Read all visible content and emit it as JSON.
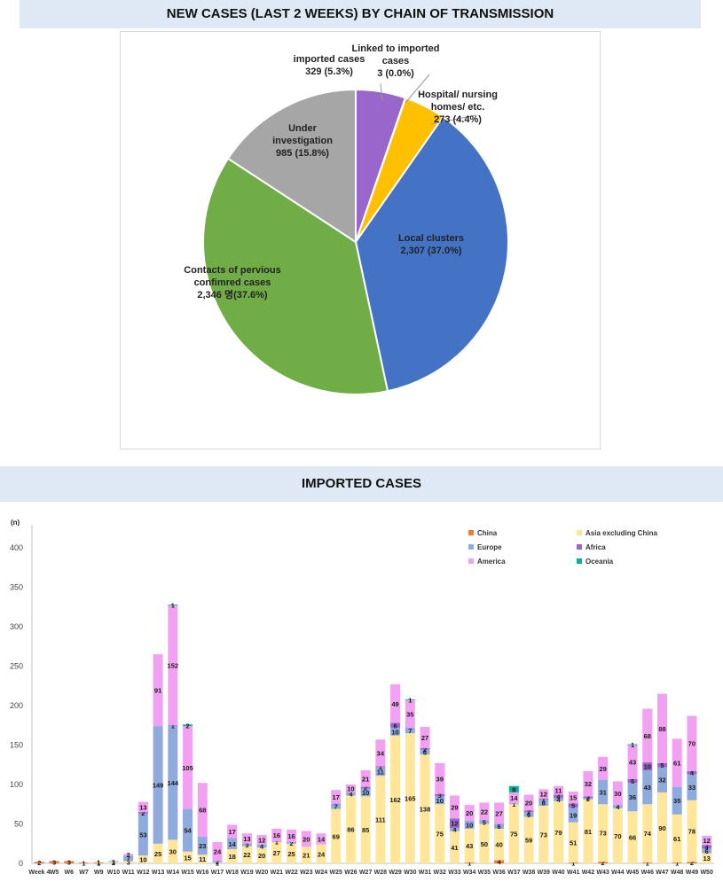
{
  "header_pie": "NEW CASES (LAST 2 WEEKS) BY CHAIN OF TRANSMISSION",
  "header_bar": "IMPORTED CASES",
  "chart_data": [
    {
      "type": "pie",
      "title": "NEW CASES (LAST 2 WEEKS) BY CHAIN OF TRANSMISSION",
      "slices": [
        {
          "line1": "imported cases",
          "line2": "",
          "line3": "329 (5.3%)",
          "value": 329,
          "percent": 5.3,
          "color": "#9966cc"
        },
        {
          "line1": "Linked to imported",
          "line2": "cases",
          "line3": "3 (0.0%)",
          "value": 3,
          "percent": 0.0,
          "color": "#f2d24a"
        },
        {
          "line1": "Hospital/ nursing",
          "line2": "homes/ etc.",
          "line3": "273 (4.4%)",
          "value": 273,
          "percent": 4.4,
          "color": "#ffc000"
        },
        {
          "line1": "Local clusters",
          "line2": "",
          "line3": "2,307 (37.0%)",
          "value": 2307,
          "percent": 37.0,
          "color": "#4472c4"
        },
        {
          "line1": "Contacts of pervious",
          "line2": "confimred cases",
          "line3": "2,346 명(37.6%)",
          "value": 2346,
          "percent": 37.6,
          "color": "#70ad47"
        },
        {
          "line1": "Under",
          "line2": "investigation",
          "line3": "985 (15.8%)",
          "value": 985,
          "percent": 15.8,
          "color": "#a6a6a6"
        }
      ]
    },
    {
      "type": "bar",
      "stacked": true,
      "title": "IMPORTED CASES",
      "ylabel": "(n)",
      "ylim": [
        0,
        400
      ],
      "yticks": [
        "0",
        "50",
        "100",
        "150",
        "200",
        "250",
        "300",
        "350",
        "400"
      ],
      "legend_position": "top-right",
      "categories": [
        "Week 4",
        "W5",
        "W6",
        "W7",
        "W9",
        "W10",
        "W11",
        "W12",
        "W13",
        "W14",
        "W15",
        "W16",
        "W17",
        "W18",
        "W19",
        "W20",
        "W21",
        "W22",
        "W23",
        "W24",
        "W25",
        "W26",
        "W27",
        "W28",
        "W29",
        "W30",
        "W31",
        "W32",
        "W33",
        "W34",
        "W35",
        "W36",
        "W37",
        "W38",
        "W39",
        "W40",
        "W41",
        "W42",
        "W43",
        "W44",
        "W45",
        "W46",
        "W47",
        "W48",
        "W49",
        "W50"
      ],
      "series": [
        {
          "name": "China",
          "color": "#ed7d31",
          "values": [
            2,
            3,
            3,
            1,
            1,
            0,
            0,
            0,
            0,
            0,
            0,
            0,
            0,
            0,
            0,
            0,
            0,
            0,
            0,
            0,
            0,
            0,
            0,
            0,
            0,
            0,
            0,
            0,
            0,
            1,
            0,
            4,
            0,
            0,
            0,
            0,
            1,
            0,
            2,
            0,
            0,
            1,
            0,
            1,
            2,
            0
          ]
        },
        {
          "name": "Asia excluding China",
          "color": "#ffe699",
          "values": [
            0,
            0,
            0,
            0,
            1,
            2,
            3,
            10,
            25,
            30,
            15,
            11,
            1,
            18,
            22,
            20,
            27,
            25,
            21,
            24,
            69,
            86,
            85,
            111,
            162,
            165,
            138,
            75,
            41,
            43,
            50,
            40,
            75,
            59,
            73,
            79,
            51,
            81,
            73,
            70,
            66,
            74,
            90,
            61,
            78,
            13
          ]
        },
        {
          "name": "Europe",
          "color": "#8faadc",
          "values": [
            0,
            0,
            0,
            0,
            0,
            1,
            7,
            53,
            149,
            144,
            54,
            23,
            2,
            14,
            3,
            4,
            1,
            2,
            0,
            0,
            7,
            4,
            10,
            11,
            10,
            7,
            6,
            10,
            4,
            10,
            5,
            6,
            1,
            6,
            8,
            4,
            19,
            2,
            31,
            4,
            36,
            43,
            32,
            35,
            33,
            6
          ]
        },
        {
          "name": "Africa",
          "color": "#9966cc",
          "values": [
            0,
            0,
            0,
            0,
            0,
            0,
            0,
            2,
            0,
            1,
            0,
            0,
            0,
            0,
            0,
            0,
            0,
            0,
            0,
            0,
            0,
            0,
            2,
            1,
            6,
            0,
            2,
            3,
            12,
            0,
            0,
            0,
            0,
            2,
            1,
            4,
            5,
            2,
            0,
            0,
            5,
            10,
            5,
            0,
            4,
            4
          ]
        },
        {
          "name": "America",
          "color": "#f2a0f2",
          "values": [
            0,
            0,
            0,
            0,
            0,
            0,
            2,
            13,
            91,
            152,
            105,
            68,
            24,
            17,
            13,
            12,
            16,
            16,
            20,
            14,
            17,
            10,
            21,
            34,
            49,
            35,
            27,
            39,
            29,
            20,
            22,
            27,
            14,
            20,
            12,
            11,
            15,
            32,
            29,
            30,
            43,
            68,
            88,
            61,
            70,
            12
          ]
        },
        {
          "name": "Oceania",
          "color": "#00b394",
          "values": [
            0,
            0,
            0,
            0,
            0,
            0,
            0,
            0,
            0,
            1,
            2,
            0,
            0,
            0,
            0,
            0,
            0,
            0,
            0,
            0,
            0,
            0,
            0,
            0,
            0,
            1,
            0,
            0,
            0,
            0,
            0,
            0,
            8,
            0,
            0,
            0,
            0,
            0,
            0,
            0,
            1,
            0,
            0,
            0,
            0,
            0
          ]
        }
      ]
    }
  ]
}
